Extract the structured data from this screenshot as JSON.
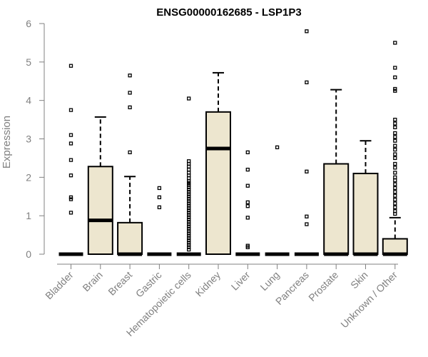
{
  "chart_data": {
    "type": "boxplot",
    "title": "ENSG00000162685 - LSP1P3",
    "xlabel": "",
    "ylabel": "Expression",
    "ylim": [
      0,
      6
    ],
    "yticks": [
      0,
      1,
      2,
      3,
      4,
      5,
      6
    ],
    "categories": [
      "Bladder",
      "Brain",
      "Breast",
      "Gastric",
      "Hematopoietic cells",
      "Kidney",
      "Liver",
      "Lung",
      "Pancreas",
      "Prostate",
      "Skin",
      "Unknown / Other"
    ],
    "boxes": [
      {
        "q1": 0,
        "median": 0,
        "q3": 0,
        "whisker_low": 0,
        "whisker_high": 0,
        "outliers": [
          4.9,
          3.75,
          3.1,
          2.88,
          2.45,
          2.05,
          1.48,
          1.43,
          1.08
        ]
      },
      {
        "q1": 0,
        "median": 0.88,
        "q3": 2.28,
        "whisker_low": 0,
        "whisker_high": 3.57,
        "outliers": []
      },
      {
        "q1": 0,
        "median": 0,
        "q3": 0.82,
        "whisker_low": 0,
        "whisker_high": 2.02,
        "outliers": [
          4.65,
          4.2,
          3.82,
          2.65
        ]
      },
      {
        "q1": 0,
        "median": 0,
        "q3": 0,
        "whisker_low": 0,
        "whisker_high": 0,
        "outliers": [
          1.72,
          1.48,
          1.22
        ]
      },
      {
        "q1": 0,
        "median": 0,
        "q3": 0,
        "whisker_low": 0,
        "whisker_high": 0,
        "outliers": [
          4.05,
          2.42,
          2.35,
          2.28,
          2.2,
          2.12,
          2.05,
          1.98,
          1.9,
          1.85,
          1.8,
          1.74,
          1.68,
          1.62,
          1.56,
          1.5,
          1.44,
          1.38,
          1.32,
          1.26,
          1.2,
          1.14,
          1.08,
          1.02,
          0.96,
          0.9,
          0.84,
          0.78,
          0.72,
          0.66,
          0.6,
          0.54,
          0.48,
          0.42,
          0.36,
          0.3,
          0.24,
          0.18,
          0.12
        ]
      },
      {
        "q1": 0,
        "median": 2.75,
        "q3": 3.7,
        "whisker_low": 0,
        "whisker_high": 4.72,
        "outliers": []
      },
      {
        "q1": 0,
        "median": 0,
        "q3": 0,
        "whisker_low": 0,
        "whisker_high": 0,
        "outliers": [
          2.65,
          2.2,
          1.78,
          1.35,
          1.25,
          0.95,
          0.22,
          0.18
        ]
      },
      {
        "q1": 0,
        "median": 0,
        "q3": 0,
        "whisker_low": 0,
        "whisker_high": 0,
        "outliers": [
          2.78
        ]
      },
      {
        "q1": 0,
        "median": 0,
        "q3": 0,
        "whisker_low": 0,
        "whisker_high": 0,
        "outliers": [
          5.8,
          4.47,
          2.15,
          0.98,
          0.78
        ]
      },
      {
        "q1": 0,
        "median": 0,
        "q3": 2.35,
        "whisker_low": 0,
        "whisker_high": 4.28,
        "outliers": []
      },
      {
        "q1": 0,
        "median": 0,
        "q3": 2.1,
        "whisker_low": 0,
        "whisker_high": 2.95,
        "outliers": []
      },
      {
        "q1": 0,
        "median": 0,
        "q3": 0.4,
        "whisker_low": 0,
        "whisker_high": 0.95,
        "outliers": [
          5.5,
          4.85,
          4.6,
          4.3,
          4.25,
          3.5,
          3.4,
          3.3,
          3.15,
          3.05,
          2.95,
          2.82,
          2.72,
          2.6,
          2.5,
          2.35,
          2.25,
          2.12,
          2.0,
          1.92,
          1.82,
          1.72,
          1.62,
          1.52,
          1.42,
          1.32,
          1.22,
          1.12,
          1.05
        ]
      }
    ]
  }
}
